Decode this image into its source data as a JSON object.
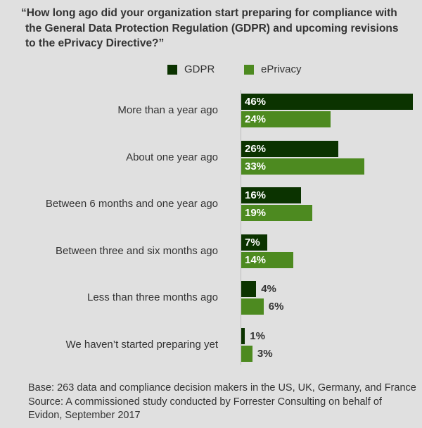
{
  "chart_data": {
    "type": "bar",
    "orientation": "horizontal",
    "title_lines": [
      "“How long ago did your organization start preparing for compliance with",
      "the General Data Protection Regulation (GDPR) and upcoming revisions",
      "to the ePrivacy Directive?”"
    ],
    "categories": [
      "More than a year ago",
      "About one year ago",
      "Between 6 months and one year ago",
      "Between three and six months ago",
      "Less than three months ago",
      "We haven’t started preparing yet"
    ],
    "series": [
      {
        "name": "GDPR",
        "color": "#0b3300",
        "values": [
          46,
          26,
          16,
          7,
          4,
          1
        ]
      },
      {
        "name": "ePrivacy",
        "color": "#4d8a20",
        "values": [
          24,
          33,
          19,
          14,
          6,
          3
        ]
      }
    ],
    "value_format": "percent",
    "legend": "top-center",
    "grid": false,
    "footer": [
      "Base: 263 data and compliance decision makers in the US, UK, Germany, and France",
      "Source: A commissioned study conducted by Forrester Consulting on behalf of",
      "Evidon, September 2017"
    ]
  },
  "background": "#e0e0e0"
}
